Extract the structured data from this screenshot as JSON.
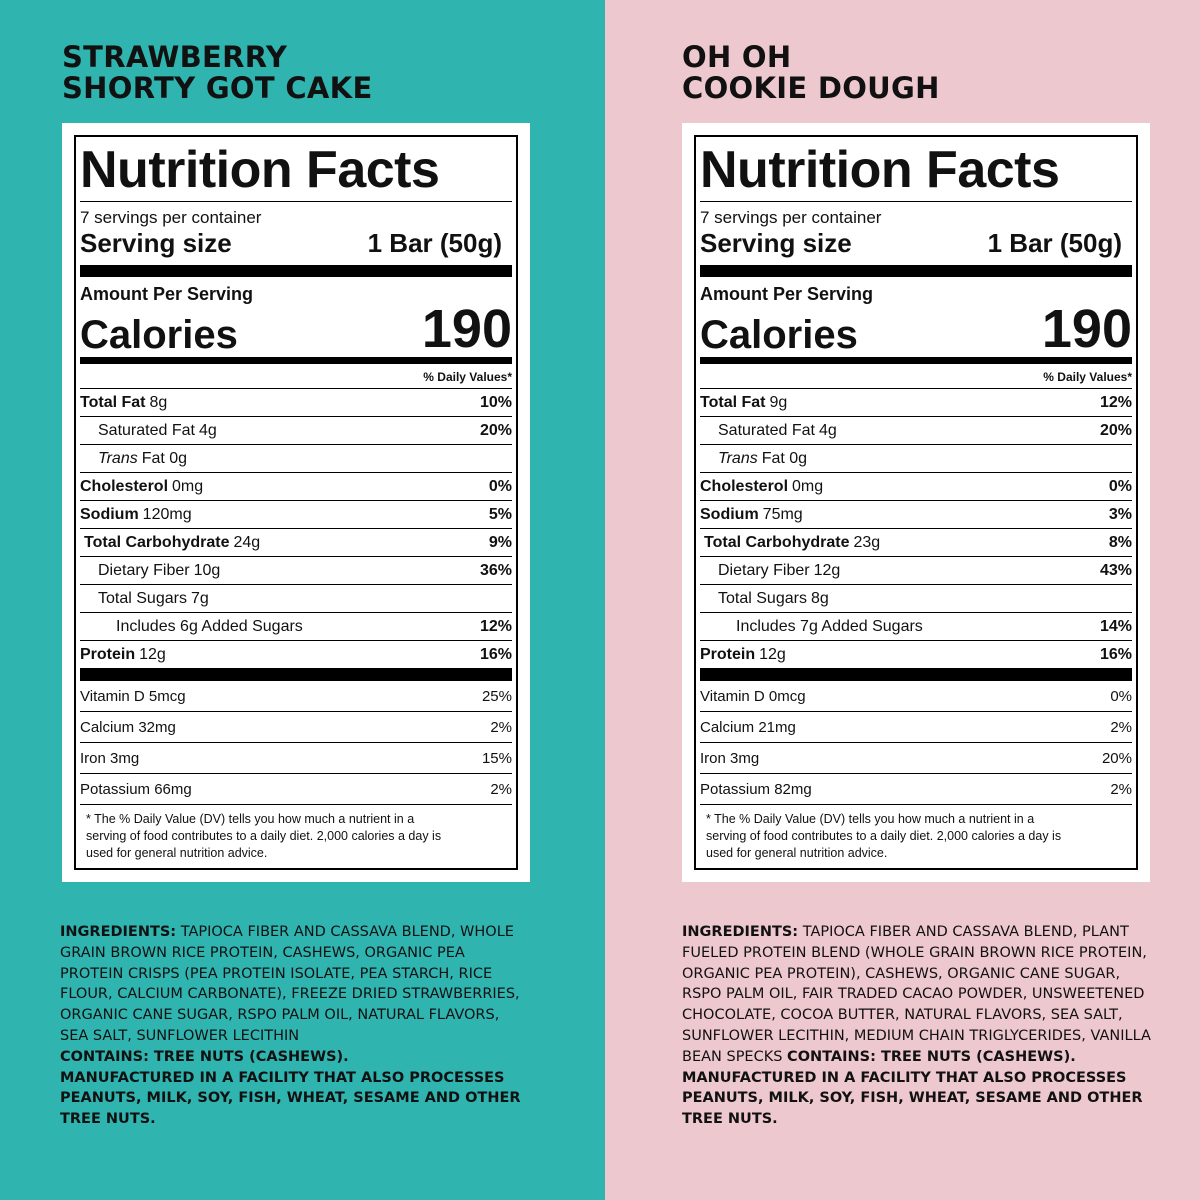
{
  "panels": [
    {
      "title": [
        "STRAWBERRY",
        "SHORTY GOT CAKE"
      ],
      "label": {
        "heading": "Nutrition Facts",
        "servings": "7 servings per container",
        "serving_size_label": "Serving size",
        "serving_size": "1 Bar (50g)",
        "amount_per_serving": "Amount Per Serving",
        "calories_label": "Calories",
        "calories": "190",
        "dv_header": "% Daily Values*",
        "rows": [
          {
            "name": "Total Fat",
            "amount": "8g",
            "dv": "10%",
            "bold": true,
            "indent": 0
          },
          {
            "name": "Saturated Fat",
            "amount": "4g",
            "dv": "20%",
            "bold": false,
            "indent": 1
          },
          {
            "name": "Trans",
            "amount": "Fat 0g",
            "bold": false,
            "italic": true,
            "indent": 1
          },
          {
            "name": "Cholesterol",
            "amount": "0mg",
            "dv": "0%",
            "bold": true,
            "indent": 0
          },
          {
            "name": "Sodium",
            "amount": "120mg",
            "dv": "5%",
            "bold": true,
            "indent": 0
          },
          {
            "name": "Total Carbohydrate",
            "amount": "24g",
            "dv": "9%",
            "bold": true,
            "indent": 0
          },
          {
            "name": "Dietary Fiber",
            "amount": "10g",
            "dv": "36%",
            "bold": false,
            "indent": 1
          },
          {
            "name": "Total Sugars",
            "amount": "7g",
            "bold": false,
            "indent": 1
          },
          {
            "name": "Includes 6g Added Sugars",
            "dv": "12%",
            "bold": false,
            "indent": 2
          },
          {
            "name": "Protein",
            "amount": "12g",
            "dv": "16%",
            "bold": true,
            "indent": 0
          }
        ],
        "vitamins": [
          {
            "name": "Vitamin D 5mcg",
            "dv": "25%"
          },
          {
            "name": "Calcium 32mg",
            "dv": "2%"
          },
          {
            "name": "Iron 3mg",
            "dv": "15%"
          },
          {
            "name": "Potassium 66mg",
            "dv": "2%"
          }
        ],
        "footnote": "* The % Daily Value (DV) tells you how much a nutrient in a serving of food contributes to a daily diet. 2,000 calories a day is used for general nutrition advice."
      },
      "ingredients": [
        [
          {
            "text": "INGREDIENTS:",
            "bold": true
          },
          {
            "text": "TAPIOCA FIBER AND CASSAVA BLEND, WHOLE GRAIN BROWN RICE PROTEIN, CASHEWS, ORGANIC PEA PROTEIN CRISPS (PEA PROTEIN ISOLATE, PEA STARCH, RICE FLOUR, CALCIUM CARBONATE), FREEZE DRIED STRAWBERRIES, ORGANIC CANE SUGAR, RSPO PALM OIL, NATURAL FLAVORS, SEA SALT, SUNFLOWER LECITHIN",
            "bold": false
          }
        ],
        [
          {
            "text": "CONTAINS: TREE NUTS (CASHEWS).",
            "bold": true
          }
        ],
        [
          {
            "text": "MANUFACTURED IN A FACILITY THAT ALSO PROCESSES PEANUTS, MILK, SOY, FISH, WHEAT, SESAME AND OTHER TREE NUTS.",
            "bold": true
          }
        ]
      ]
    },
    {
      "title": [
        "OH OH",
        "COOKIE DOUGH"
      ],
      "label": {
        "heading": "Nutrition Facts",
        "servings": "7 servings per container",
        "serving_size_label": "Serving size",
        "serving_size": "1 Bar (50g)",
        "amount_per_serving": "Amount Per Serving",
        "calories_label": "Calories",
        "calories": "190",
        "dv_header": "% Daily Values*",
        "rows": [
          {
            "name": "Total Fat",
            "amount": "9g",
            "dv": "12%",
            "bold": true,
            "indent": 0
          },
          {
            "name": "Saturated Fat",
            "amount": "4g",
            "dv": "20%",
            "bold": false,
            "indent": 1
          },
          {
            "name": "Trans",
            "amount": "Fat 0g",
            "bold": false,
            "italic": true,
            "indent": 1
          },
          {
            "name": "Cholesterol",
            "amount": "0mg",
            "dv": "0%",
            "bold": true,
            "indent": 0
          },
          {
            "name": "Sodium",
            "amount": "75mg",
            "dv": "3%",
            "bold": true,
            "indent": 0
          },
          {
            "name": "Total Carbohydrate",
            "amount": "23g",
            "dv": "8%",
            "bold": true,
            "indent": 0
          },
          {
            "name": "Dietary Fiber",
            "amount": "12g",
            "dv": "43%",
            "bold": false,
            "indent": 1
          },
          {
            "name": "Total Sugars",
            "amount": "8g",
            "bold": false,
            "indent": 1
          },
          {
            "name": "Includes 7g Added Sugars",
            "dv": "14%",
            "bold": false,
            "indent": 2
          },
          {
            "name": "Protein",
            "amount": "12g",
            "dv": "16%",
            "bold": true,
            "indent": 0
          }
        ],
        "vitamins": [
          {
            "name": "Vitamin D 0mcg",
            "dv": "0%"
          },
          {
            "name": "Calcium 21mg",
            "dv": "2%"
          },
          {
            "name": "Iron 3mg",
            "dv": "20%"
          },
          {
            "name": "Potassium 82mg",
            "dv": "2%"
          }
        ],
        "footnote": "* The % Daily Value (DV) tells you how much a nutrient in a serving of food contributes to a daily diet. 2,000 calories a day is used for general nutrition advice."
      },
      "ingredients": [
        [
          {
            "text": "INGREDIENTS:",
            "bold": true
          },
          {
            "text": "TAPIOCA FIBER AND CASSAVA BLEND, PLANT FUELED PROTEIN BLEND (WHOLE GRAIN BROWN RICE PROTEIN, ORGANIC PEA PROTEIN), CASHEWS, ORGANIC CANE SUGAR, RSPO PALM OIL, FAIR TRADED CACAO POWDER, UNSWEETENED CHOCOLATE, COCOA BUTTER, NATURAL FLAVORS, SEA SALT, SUNFLOWER LECITHIN, MEDIUM CHAIN TRIGLYCERIDES, VANILLA BEAN SPECKS",
            "bold": false
          },
          {
            "text": "CONTAINS: TREE NUTS (CASHEWS).",
            "bold": true
          }
        ],
        [
          {
            "text": "MANUFACTURED IN A FACILITY THAT ALSO PROCESSES PEANUTS, MILK, SOY, FISH, WHEAT, SESAME AND OTHER TREE NUTS.",
            "bold": true
          }
        ]
      ]
    }
  ]
}
